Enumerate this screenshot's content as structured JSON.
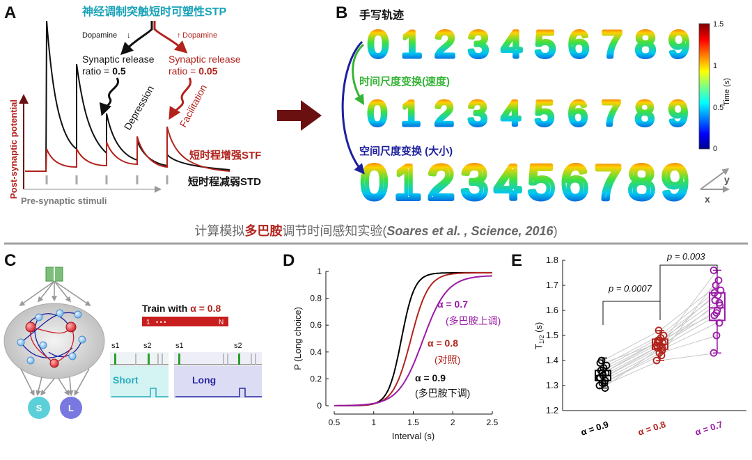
{
  "colors": {
    "black": "#111111",
    "red": "#b2231c",
    "teal": "#17a2b8",
    "green": "#36b336",
    "blue": "#1c1f9e",
    "purple": "#9a1aa6",
    "arrow": "#6b1010",
    "grey": "#a8a8a8"
  },
  "panelA": {
    "letter": "A",
    "title": "神经调制突触短时可塑性STP",
    "dopamine_down": "Dopamine",
    "dopamine_up": "Dopamine",
    "release_black_l1": "Synaptic release",
    "release_black_l2a": "ratio = ",
    "release_black_l2b": "0.5",
    "release_red_l1": "Synaptic release",
    "release_red_l2a": "ratio = ",
    "release_red_l2b": "0.05",
    "depression": "Depression",
    "facilitation": "Facilitation",
    "stf_label": "短时程增强STF",
    "std_label": "短时程减弱STD",
    "y_axis": "Post-synaptic potential",
    "x_axis": "Pre-synaptic stimuli"
  },
  "panelB": {
    "letter": "B",
    "title": "手写轨迹",
    "row2_label": "时间尺度变换(速度)",
    "row3_label": "空间尺度变换 (大小)",
    "digits": [
      "0",
      "1",
      "2",
      "3",
      "4",
      "5",
      "6",
      "7",
      "8",
      "9"
    ],
    "colorbar_label": "Time (s)",
    "colorbar_ticks": [
      "1.5",
      "1",
      "0.5",
      "0"
    ],
    "axis_x": "x",
    "axis_y": "y"
  },
  "divider": {
    "part1": "计算模拟",
    "part2": "多巴胺",
    "part3": "调节时间感知实验(",
    "part4": "Soares et al. , Science, 2016",
    "part5": ")"
  },
  "panelC": {
    "letter": "C",
    "train_prefix": "Train with ",
    "train_alpha": "α = 0.8",
    "train_bar_start": "1",
    "train_bar_dots": "• • •",
    "train_bar_end": "N",
    "s1_a": "s1",
    "s2_a": "s2",
    "s1_b": "s1",
    "s2_b": "s2",
    "short": "Short",
    "long": "Long",
    "out_s": "S",
    "out_l": "L"
  },
  "panelD": {
    "letter": "D",
    "legend": [
      {
        "alpha": "α = 0.7",
        "note": "(多巴胺上调)"
      },
      {
        "alpha": "α = 0.8",
        "note": "(对照)"
      },
      {
        "alpha": "α = 0.9",
        "note": "(多巴胺下调)"
      }
    ]
  },
  "panelE": {
    "letter": "E",
    "p1": "p = 0.0007",
    "p2": "p = 0.003"
  },
  "chart_data": [
    {
      "type": "line",
      "panel": "D",
      "title": "",
      "xlabel": "Interval (s)",
      "ylabel": "P (Long choice)",
      "xlim": [
        0.5,
        2.5
      ],
      "ylim": [
        0,
        1
      ],
      "xticks": [
        0.5,
        1,
        1.5,
        2,
        2.5
      ],
      "xtick_labels": [
        "0.5",
        "1",
        "1.5",
        "2",
        "2.5"
      ],
      "yticks": [
        0,
        0.2,
        0.4,
        0.6,
        0.8,
        1
      ],
      "ytick_labels": [
        "0",
        "0.2",
        "0.4",
        "0.6",
        "0.8",
        "1"
      ],
      "series": [
        {
          "name": "α = 0.9",
          "color": "#000000",
          "midpoint": 1.35,
          "steepness": 12,
          "asymptote": 0.99
        },
        {
          "name": "α = 0.8",
          "color": "#b2231c",
          "midpoint": 1.47,
          "steepness": 9,
          "asymptote": 0.99
        },
        {
          "name": "α = 0.7",
          "color": "#9a1aa6",
          "midpoint": 1.62,
          "steepness": 6.5,
          "asymptote": 0.97
        }
      ]
    },
    {
      "type": "box",
      "panel": "E",
      "title": "",
      "xlabel": "",
      "ylabel": "T1/2 (s)",
      "ylabel_main": "T",
      "ylabel_sub": "1/2",
      "ylabel_unit": " (s)",
      "ylim": [
        1.2,
        1.8
      ],
      "yticks": [
        1.2,
        1.3,
        1.4,
        1.5,
        1.6,
        1.7,
        1.8
      ],
      "ytick_labels": [
        "1.2",
        "1.3",
        "1.4",
        "1.5",
        "1.6",
        "1.7",
        "1.8"
      ],
      "categories": [
        "α = 0.9",
        "α = 0.8",
        "α = 0.7"
      ],
      "category_colors": [
        "#000000",
        "#b2231c",
        "#9a1aa6"
      ],
      "boxes": [
        {
          "min": 1.29,
          "q1": 1.32,
          "median": 1.34,
          "q3": 1.36,
          "max": 1.41
        },
        {
          "min": 1.4,
          "q1": 1.445,
          "median": 1.465,
          "q3": 1.485,
          "max": 1.52
        },
        {
          "min": 1.43,
          "q1": 1.56,
          "median": 1.61,
          "q3": 1.67,
          "max": 1.76
        }
      ],
      "points": [
        [
          1.3,
          1.31,
          1.32,
          1.33,
          1.34,
          1.35,
          1.36,
          1.37,
          1.38,
          1.4,
          1.31,
          1.33,
          1.35,
          1.29,
          1.39
        ],
        [
          1.4,
          1.43,
          1.44,
          1.45,
          1.46,
          1.47,
          1.48,
          1.49,
          1.5,
          1.52,
          1.42,
          1.46,
          1.48,
          1.45,
          1.47
        ],
        [
          1.43,
          1.5,
          1.55,
          1.58,
          1.6,
          1.62,
          1.64,
          1.66,
          1.68,
          1.7,
          1.72,
          1.76,
          1.59,
          1.63,
          1.67
        ]
      ]
    }
  ]
}
